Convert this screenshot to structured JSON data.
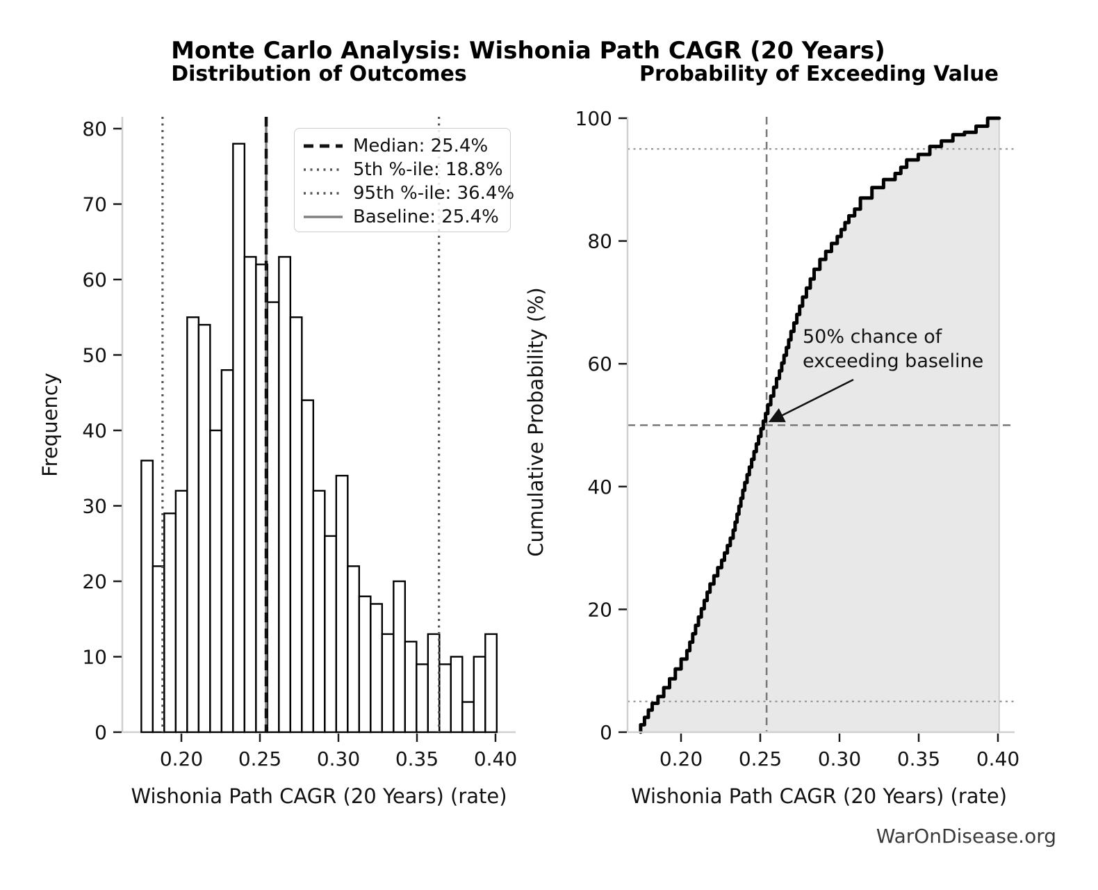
{
  "title": "Monte Carlo Analysis: Wishonia Path CAGR (20 Years)",
  "footer": "WarOnDisease.org",
  "colors": {
    "bar_fill": "#ffffff",
    "bar_edge": "#000000",
    "median_line": "#111111",
    "percentile_line": "#555555",
    "baseline_line": "#808080",
    "cdf_line": "#000000",
    "cdf_fill": "#e8e8e8",
    "cdf_fill_edge": "#c8c8c8",
    "ref_dashed": "#7a7a7a",
    "ref_dotted": "#9a9a9a",
    "spine": "#cfcfcf",
    "tick": "#1a1a1a"
  },
  "chart_data": [
    {
      "type": "bar",
      "title": "Distribution of Outcomes",
      "xlabel": "Wishonia Path CAGR (20 Years) (rate)",
      "ylabel": "Frequency",
      "bin_start": 0.1745,
      "bin_width": 0.0073,
      "values": [
        36,
        22,
        29,
        32,
        55,
        54,
        40,
        48,
        78,
        63,
        62,
        57,
        63,
        55,
        44,
        32,
        26,
        34,
        22,
        18,
        17,
        13,
        20,
        12,
        9,
        13,
        9,
        10,
        4,
        10,
        13
      ],
      "xlim": [
        0.1624,
        0.4106
      ],
      "ylim": [
        0,
        81.4
      ],
      "xticks": [
        {
          "label": "0.20",
          "value": 0.2
        },
        {
          "label": "0.25",
          "value": 0.25
        },
        {
          "label": "0.30",
          "value": 0.3
        },
        {
          "label": "0.35",
          "value": 0.35
        },
        {
          "label": "0.40",
          "value": 0.4
        }
      ],
      "yticks": [
        {
          "label": "0",
          "value": 0
        },
        {
          "label": "10",
          "value": 10
        },
        {
          "label": "20",
          "value": 20
        },
        {
          "label": "30",
          "value": 30
        },
        {
          "label": "40",
          "value": 40
        },
        {
          "label": "50",
          "value": 50
        },
        {
          "label": "60",
          "value": 60
        },
        {
          "label": "70",
          "value": 70
        },
        {
          "label": "80",
          "value": 80
        }
      ],
      "vlines": {
        "median": {
          "value": 0.254,
          "style": "dashed-bold"
        },
        "p5": {
          "value": 0.188,
          "style": "dotted"
        },
        "p95": {
          "value": 0.364,
          "style": "dotted"
        },
        "baseline": {
          "value": 0.254,
          "style": "solid"
        }
      },
      "legend": [
        {
          "label": "Median: 25.4%",
          "style": "dashed-bold"
        },
        {
          "label": "5th %-ile: 18.8%",
          "style": "dotted"
        },
        {
          "label": "95th %-ile: 36.4%",
          "style": "dotted"
        },
        {
          "label": "Baseline: 25.4%",
          "style": "solid"
        }
      ],
      "legend_position": "upper right",
      "grid": false
    },
    {
      "type": "line",
      "title": "Probability of Exceeding Value",
      "xlabel": "Wishonia Path CAGR (20 Years) (rate)",
      "ylabel": "Cumulative Probability (%)",
      "x": [
        0.1745,
        0.1818,
        0.1891,
        0.1964,
        0.2037,
        0.211,
        0.2183,
        0.2256,
        0.2329,
        0.2402,
        0.2475,
        0.2548,
        0.2621,
        0.2694,
        0.2767,
        0.284,
        0.2913,
        0.2986,
        0.3059,
        0.3132,
        0.3205,
        0.3278,
        0.3351,
        0.3424,
        0.3497,
        0.357,
        0.3643,
        0.3716,
        0.3789,
        0.3862,
        0.3935,
        0.4008
      ],
      "y": [
        0,
        3.6,
        5.8,
        8.7,
        11.9,
        17.4,
        22.8,
        26.8,
        31.6,
        39.4,
        45.7,
        51.9,
        57.6,
        63.9,
        69.4,
        73.8,
        77.0,
        79.6,
        83.0,
        85.2,
        87.0,
        88.7,
        90.0,
        92.0,
        93.2,
        94.1,
        95.4,
        96.3,
        97.3,
        97.7,
        98.7,
        100
      ],
      "xlim": [
        0.1662,
        0.4106
      ],
      "ylim": [
        0,
        100
      ],
      "xticks": [
        {
          "label": "0.20",
          "value": 0.2
        },
        {
          "label": "0.25",
          "value": 0.25
        },
        {
          "label": "0.30",
          "value": 0.3
        },
        {
          "label": "0.35",
          "value": 0.35
        },
        {
          "label": "0.40",
          "value": 0.4
        }
      ],
      "yticks": [
        {
          "label": "0",
          "value": 0
        },
        {
          "label": "20",
          "value": 20
        },
        {
          "label": "40",
          "value": 40
        },
        {
          "label": "60",
          "value": 60
        },
        {
          "label": "80",
          "value": 80
        },
        {
          "label": "100",
          "value": 100
        }
      ],
      "hlines": {
        "p95": {
          "value": 95,
          "style": "dotted"
        },
        "fifty": {
          "value": 50,
          "style": "dashed"
        },
        "p5": {
          "value": 5,
          "style": "dotted"
        }
      },
      "vline_baseline": {
        "value": 0.254,
        "style": "dashed"
      },
      "fill_under_curve": true,
      "annotation": {
        "text": "50% chance of\nexceeding baseline",
        "points_to": {
          "x": 0.254,
          "y": 50
        }
      },
      "grid": false
    }
  ]
}
